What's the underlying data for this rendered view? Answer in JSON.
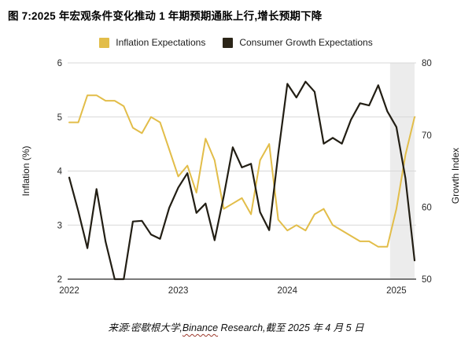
{
  "title": "图 7:2025 年宏观条件变化推动 1 年期预期通胀上行,增长预期下降",
  "legend": [
    {
      "label": "Inflation Expectations",
      "color": "#e2bd49"
    },
    {
      "label": "Consumer Growth Expectations",
      "color": "#2b2518"
    }
  ],
  "source": {
    "prefix": "来源:密歇根大学,",
    "link": "Binance",
    "rest": " Research,截至 2025 年 4 月 5 日"
  },
  "chart_data": {
    "type": "line",
    "title": "图 7:2025 年宏观条件变化推动 1 年期预期通胀上行,增长预期下降",
    "x": [
      "2022-01",
      "2022-02",
      "2022-03",
      "2022-04",
      "2022-05",
      "2022-06",
      "2022-07",
      "2022-08",
      "2022-09",
      "2022-10",
      "2022-11",
      "2022-12",
      "2023-01",
      "2023-02",
      "2023-03",
      "2023-04",
      "2023-05",
      "2023-06",
      "2023-07",
      "2023-08",
      "2023-09",
      "2023-10",
      "2023-11",
      "2023-12",
      "2024-01",
      "2024-02",
      "2024-03",
      "2024-04",
      "2024-05",
      "2024-06",
      "2024-07",
      "2024-08",
      "2024-09",
      "2024-10",
      "2024-11",
      "2024-12",
      "2025-01",
      "2025-02",
      "2025-03"
    ],
    "x_ticks": [
      {
        "index": 0,
        "label": "2022"
      },
      {
        "index": 12,
        "label": "2023"
      },
      {
        "index": 24,
        "label": "2024"
      },
      {
        "index": 36,
        "label": "2025"
      }
    ],
    "left_axis": {
      "label": "Inflation (%)",
      "min": 2,
      "max": 6,
      "ticks": [
        6,
        5,
        4,
        3,
        2
      ]
    },
    "right_axis": {
      "label": "Growth Index",
      "min": 50,
      "max": 80,
      "ticks": [
        80,
        70,
        60,
        50
      ]
    },
    "grid": "horizontal",
    "legend_position": "top",
    "series": [
      {
        "name": "Inflation Expectations",
        "axis": "left",
        "color": "#e2bd49",
        "values": [
          4.9,
          4.9,
          5.4,
          5.4,
          5.3,
          5.3,
          5.2,
          4.8,
          4.7,
          5.0,
          4.9,
          4.4,
          3.9,
          4.1,
          3.6,
          4.6,
          4.2,
          3.3,
          3.4,
          3.5,
          3.2,
          4.2,
          4.5,
          3.1,
          2.9,
          3.0,
          2.9,
          3.2,
          3.3,
          3.0,
          2.9,
          2.8,
          2.7,
          2.7,
          2.6,
          2.6,
          3.3,
          4.3,
          5.0
        ]
      },
      {
        "name": "Consumer Growth Expectations",
        "axis": "right",
        "color": "#221e14",
        "values": [
          64.1,
          59.4,
          54.3,
          62.5,
          55.2,
          50.0,
          50.0,
          58.0,
          58.1,
          56.2,
          55.6,
          59.9,
          62.7,
          64.7,
          59.2,
          60.5,
          55.4,
          61.5,
          68.3,
          65.5,
          66.0,
          59.3,
          56.8,
          67.4,
          77.1,
          75.2,
          77.4,
          76.0,
          68.8,
          69.6,
          68.8,
          72.1,
          74.4,
          74.1,
          76.9,
          73.3,
          71.1,
          64.0,
          52.6
        ]
      }
    ],
    "highlight_region": {
      "from": "2025-01",
      "to": "2025-03",
      "color": "#ececec"
    }
  }
}
